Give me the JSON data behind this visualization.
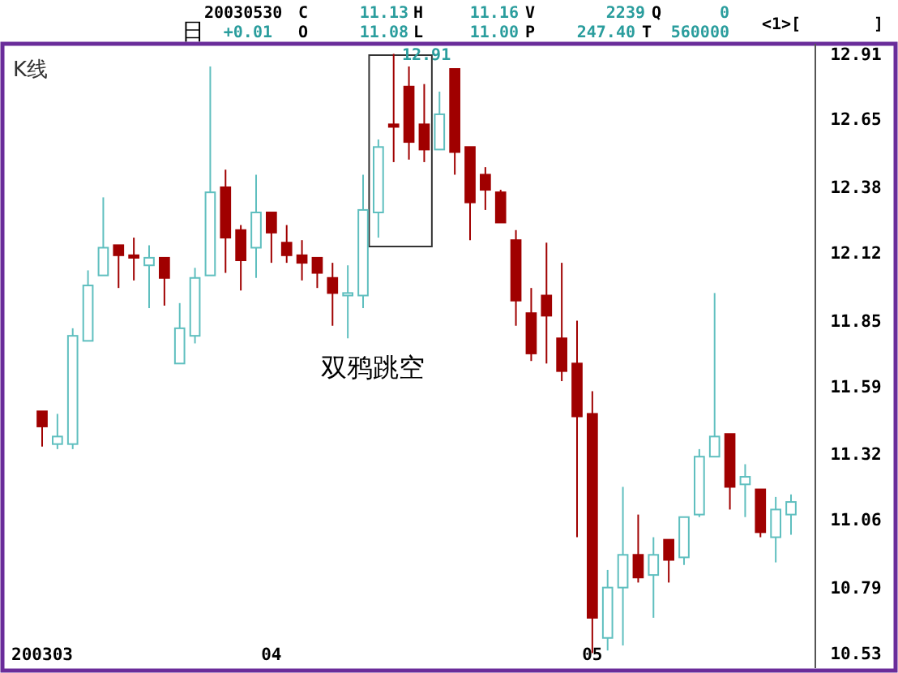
{
  "chart_data": {
    "type": "candlestick",
    "categories": [
      "200303",
      null,
      null,
      null,
      null,
      null,
      null,
      null,
      null,
      null,
      null,
      null,
      null,
      null,
      null,
      "04",
      null,
      null,
      null,
      null,
      null,
      null,
      null,
      null,
      null,
      null,
      null,
      null,
      null,
      null,
      null,
      null,
      null,
      null,
      null,
      null,
      "05",
      null,
      null,
      null,
      null,
      null,
      null,
      null,
      null,
      null,
      null,
      null,
      null,
      null
    ],
    "ohlc": [
      [
        11.49,
        11.49,
        11.35,
        11.43
      ],
      [
        11.36,
        11.48,
        11.34,
        11.39
      ],
      [
        11.36,
        11.82,
        11.34,
        11.79
      ],
      [
        11.77,
        12.05,
        11.77,
        11.99
      ],
      [
        12.03,
        12.34,
        12.03,
        12.14
      ],
      [
        12.15,
        12.15,
        11.98,
        12.11
      ],
      [
        12.11,
        12.18,
        12.01,
        12.1
      ],
      [
        12.07,
        12.15,
        11.9,
        12.1
      ],
      [
        12.1,
        12.1,
        11.91,
        12.02
      ],
      [
        11.68,
        11.92,
        11.68,
        11.82
      ],
      [
        11.79,
        12.06,
        11.76,
        12.02
      ],
      [
        12.03,
        12.86,
        12.03,
        12.36
      ],
      [
        12.38,
        12.45,
        12.04,
        12.18
      ],
      [
        12.21,
        12.23,
        11.97,
        12.09
      ],
      [
        12.14,
        12.43,
        12.02,
        12.28
      ],
      [
        12.28,
        12.28,
        12.08,
        12.2
      ],
      [
        12.16,
        12.23,
        12.08,
        12.11
      ],
      [
        12.11,
        12.17,
        12.01,
        12.08
      ],
      [
        12.1,
        12.1,
        11.98,
        12.04
      ],
      [
        12.02,
        12.08,
        11.83,
        11.96
      ],
      [
        11.95,
        12.07,
        11.78,
        11.96
      ],
      [
        11.95,
        12.43,
        11.9,
        12.29
      ],
      [
        12.28,
        12.57,
        12.18,
        12.54
      ],
      [
        12.63,
        12.91,
        12.48,
        12.62
      ],
      [
        12.78,
        12.86,
        12.49,
        12.56
      ],
      [
        12.63,
        12.79,
        12.48,
        12.53
      ],
      [
        12.53,
        12.76,
        12.53,
        12.67
      ],
      [
        12.85,
        12.85,
        12.43,
        12.52
      ],
      [
        12.54,
        12.54,
        12.17,
        12.32
      ],
      [
        12.43,
        12.46,
        12.29,
        12.37
      ],
      [
        12.36,
        12.37,
        12.24,
        12.24
      ],
      [
        12.17,
        12.21,
        11.83,
        11.93
      ],
      [
        11.88,
        11.98,
        11.69,
        11.72
      ],
      [
        11.95,
        12.16,
        11.68,
        11.87
      ],
      [
        11.78,
        12.08,
        11.61,
        11.65
      ],
      [
        11.68,
        11.85,
        10.99,
        11.47
      ],
      [
        11.48,
        11.57,
        10.53,
        10.67
      ],
      [
        10.59,
        10.86,
        10.54,
        10.79
      ],
      [
        10.79,
        11.19,
        10.56,
        10.92
      ],
      [
        10.92,
        11.08,
        10.81,
        10.83
      ],
      [
        10.84,
        10.99,
        10.67,
        10.92
      ],
      [
        10.98,
        10.98,
        10.81,
        10.9
      ],
      [
        10.91,
        11.07,
        10.88,
        11.07
      ],
      [
        11.08,
        11.34,
        11.07,
        11.31
      ],
      [
        11.31,
        11.96,
        11.31,
        11.39
      ],
      [
        11.4,
        11.4,
        11.1,
        11.19
      ],
      [
        11.2,
        11.28,
        11.07,
        11.23
      ],
      [
        11.18,
        11.18,
        10.99,
        11.01
      ],
      [
        10.99,
        11.15,
        10.89,
        11.1
      ],
      [
        11.08,
        11.16,
        11.0,
        11.13
      ]
    ],
    "colors": [
      "#a00000",
      "#5fbfbf",
      "#5fbfbf",
      "#5fbfbf",
      "#5fbfbf",
      "#a00000",
      "#a00000",
      "#5fbfbf",
      "#a00000",
      "#5fbfbf",
      "#5fbfbf",
      "#5fbfbf",
      "#a00000",
      "#a00000",
      "#5fbfbf",
      "#a00000",
      "#a00000",
      "#a00000",
      "#a00000",
      "#a00000",
      "#5fbfbf",
      "#5fbfbf",
      "#5fbfbf",
      "#a00000",
      "#a00000",
      "#a00000",
      "#5fbfbf",
      "#a00000",
      "#a00000",
      "#a00000",
      "#a00000",
      "#a00000",
      "#a00000",
      "#a00000",
      "#a00000",
      "#a00000",
      "#a00000",
      "#5fbfbf",
      "#5fbfbf",
      "#a00000",
      "#5fbfbf",
      "#a00000",
      "#5fbfbf",
      "#5fbfbf",
      "#5fbfbf",
      "#a00000",
      "#5fbfbf",
      "#a00000",
      "#5fbfbf",
      "#5fbfbf"
    ],
    "ylim": [
      10.47,
      12.95
    ],
    "yticks": [
      10.53,
      10.79,
      11.06,
      11.32,
      11.59,
      11.85,
      12.12,
      12.38,
      12.65,
      12.91
    ],
    "grid": false,
    "legend": false,
    "annotations": [
      "20030530",
      "C",
      "11.13",
      "H",
      "11.16",
      "V",
      "2239",
      "Q",
      "0",
      "日",
      "+0.01",
      "O",
      "11.08",
      "L",
      "11.00",
      "P",
      "247.40",
      "T",
      "560000",
      "<1>[",
      "]",
      "K线",
      "双鸦跳空",
      "12.91"
    ]
  }
}
